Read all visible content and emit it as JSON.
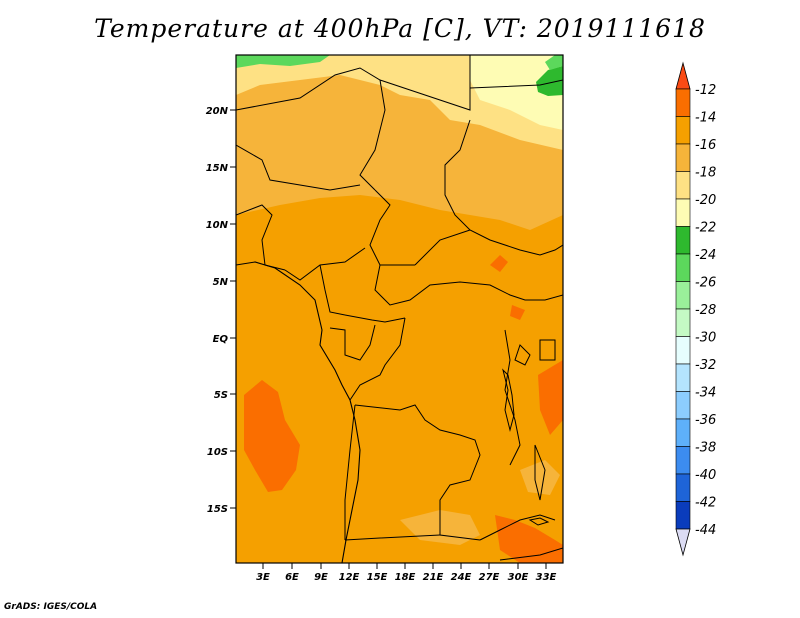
{
  "title": "Temperature at 400hPa [C], VT: 2019111618",
  "credit": "GrADS: IGES/COLA",
  "lat_labels": [
    "20N",
    "15N",
    "10N",
    "5N",
    "EQ",
    "5S",
    "10S",
    "15S"
  ],
  "lon_labels": [
    "3E",
    "6E",
    "9E",
    "12E",
    "15E",
    "18E",
    "21E",
    "24E",
    "27E",
    "30E",
    "33E"
  ],
  "colorbar": {
    "labels": [
      "-12",
      "-14",
      "-16",
      "-18",
      "-20",
      "-22",
      "-24",
      "-26",
      "-28",
      "-30",
      "-32",
      "-34",
      "-36",
      "-38",
      "-40",
      "-42",
      "-44"
    ],
    "colors": [
      "#fa4b14",
      "#fa6e00",
      "#f5a000",
      "#f6b43a",
      "#fee184",
      "#fefcb4",
      "#2eb92e",
      "#5cd85c",
      "#9af09a",
      "#c4fac4",
      "#e6fefe",
      "#b4e4fe",
      "#8ccdfe",
      "#5eb0fa",
      "#3c8cf0",
      "#1e64d8",
      "#0a3cbc",
      "#0a0a80",
      "#dcdcf4"
    ]
  }
}
